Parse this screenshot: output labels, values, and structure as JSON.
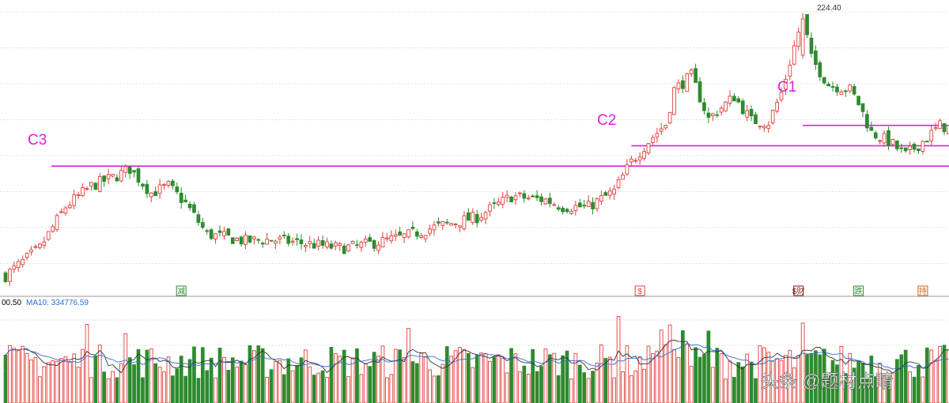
{
  "chart_data": [
    {
      "type": "candlestick",
      "title": "",
      "price_ylim": [
        60,
        232
      ],
      "grid": true,
      "up_color": "#e0403c",
      "down_color": "#2e8b2e",
      "annotations": {
        "high_label": "224.40",
        "levels": [
          {
            "label": "C3",
            "price": 135.6,
            "start_index": 0
          },
          {
            "label": "C2",
            "price": 147.4,
            "start_index": 146
          },
          {
            "label": "C1",
            "price": 159.2,
            "start_index": 186
          }
        ],
        "markers": [
          {
            "label": "减",
            "index": 41,
            "color": "#2e8b2e"
          },
          {
            "label": "$",
            "index": 148,
            "color": "#e0403c"
          },
          {
            "label": "$财",
            "index": 185,
            "color": "#8b1a1a"
          },
          {
            "label": "跌",
            "index": 199,
            "color": "#2e8b2e"
          },
          {
            "label": "持",
            "index": 214,
            "color": "#c8641e"
          }
        ]
      },
      "anchors": [
        [
          0,
          72
        ],
        [
          8,
          88
        ],
        [
          14,
          112
        ],
        [
          20,
          124
        ],
        [
          26,
          130
        ],
        [
          29,
          134
        ],
        [
          34,
          120
        ],
        [
          38,
          124
        ],
        [
          42,
          114
        ],
        [
          47,
          96
        ],
        [
          52,
          94
        ],
        [
          56,
          92
        ],
        [
          62,
          93
        ],
        [
          72,
          90
        ],
        [
          78,
          88
        ],
        [
          82,
          89
        ],
        [
          92,
          94
        ],
        [
          100,
          100
        ],
        [
          110,
          106
        ],
        [
          114,
          112
        ],
        [
          118,
          118
        ],
        [
          126,
          116
        ],
        [
          130,
          112
        ],
        [
          136,
          112
        ],
        [
          142,
          121
        ],
        [
          146,
          138
        ],
        [
          150,
          150
        ],
        [
          154,
          160
        ],
        [
          156,
          180
        ],
        [
          160,
          188
        ],
        [
          164,
          163
        ],
        [
          170,
          176
        ],
        [
          174,
          162
        ],
        [
          178,
          161
        ],
        [
          181,
          178
        ],
        [
          184,
          205
        ],
        [
          186,
          222
        ],
        [
          188,
          198
        ],
        [
          192,
          183
        ],
        [
          197,
          180
        ],
        [
          199,
          172
        ],
        [
          202,
          155
        ],
        [
          206,
          150
        ],
        [
          210,
          142
        ],
        [
          214,
          150
        ],
        [
          218,
          159
        ],
        [
          220,
          158
        ]
      ]
    },
    {
      "type": "bar",
      "title": "",
      "legend": [
        {
          "text": "00.50",
          "color": "#000000"
        },
        {
          "text": "MA10: 334776.59",
          "color": "#2a6fd6"
        }
      ],
      "volume_ylim": [
        0,
        700000
      ],
      "ma5_color": "#333333",
      "ma10_color": "#2a6fd6"
    }
  ],
  "watermark": "头条 @题材点睛"
}
